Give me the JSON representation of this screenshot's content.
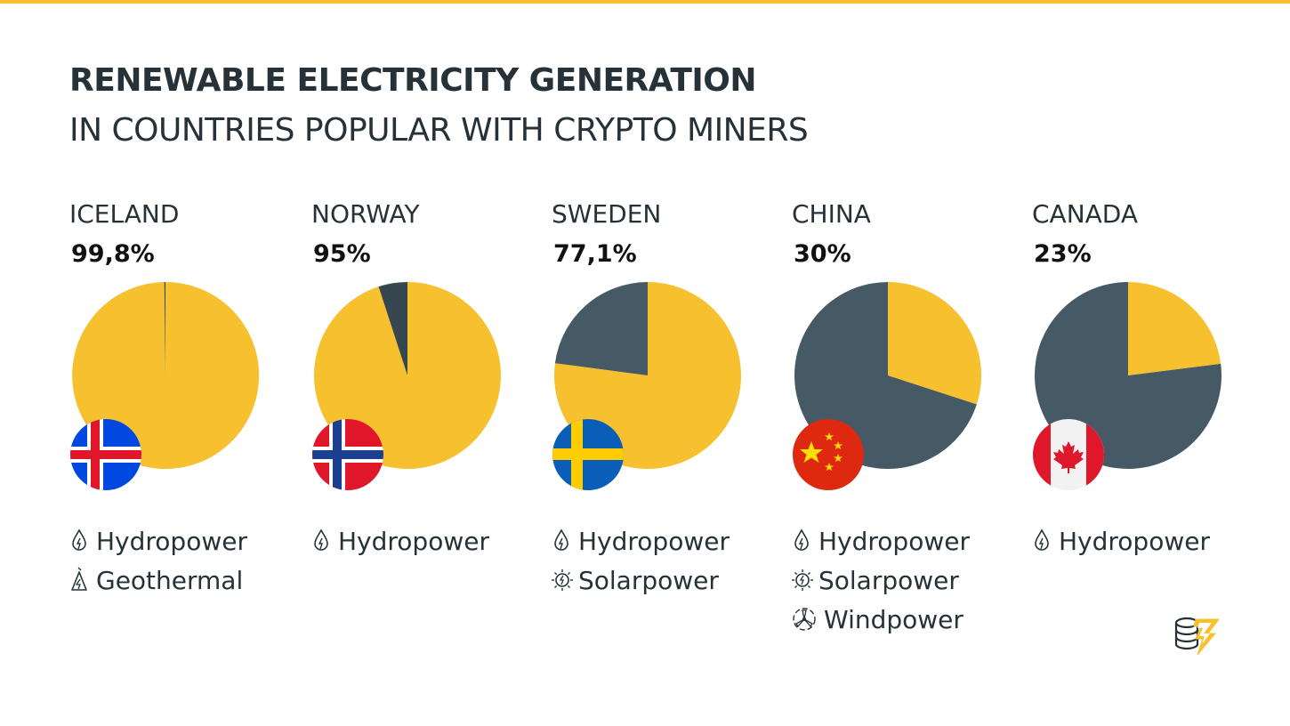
{
  "header": {
    "title": "RENEWABLE ELECTRICITY GENERATION",
    "subtitle": "IN COUNTRIES POPULAR WITH CRYPTO MINERS"
  },
  "colors": {
    "accent": "#f7c02e",
    "other_dark": "#455a64",
    "separator": "#37474f"
  },
  "chart_data": {
    "type": "pie",
    "title": "RENEWABLE ELECTRICITY GENERATION",
    "subtitle": "IN COUNTRIES POPULAR WITH CRYPTO MINERS",
    "categories": [
      "ICELAND",
      "NORWAY",
      "SWEDEN",
      "CHINA",
      "CANADA"
    ],
    "values": [
      99.8,
      95,
      77.1,
      30,
      23
    ],
    "unit": "%",
    "countries": [
      {
        "name": "ICELAND",
        "share_label": "99,8%",
        "renewable_share": 99.8,
        "flag_icon": "iceland-flag-icon",
        "sources": [
          {
            "label": "Hydropower",
            "icon": "hydropower-icon"
          },
          {
            "label": "Geothermal",
            "icon": "geothermal-icon"
          }
        ]
      },
      {
        "name": "NORWAY",
        "share_label": "95%",
        "renewable_share": 95,
        "flag_icon": "norway-flag-icon",
        "sources": [
          {
            "label": "Hydropower",
            "icon": "hydropower-icon"
          }
        ]
      },
      {
        "name": "SWEDEN",
        "share_label": "77,1%",
        "renewable_share": 77.1,
        "flag_icon": "sweden-flag-icon",
        "sources": [
          {
            "label": "Hydropower",
            "icon": "hydropower-icon"
          },
          {
            "label": "Solarpower",
            "icon": "solarpower-icon"
          }
        ]
      },
      {
        "name": "CHINA",
        "share_label": "30%",
        "renewable_share": 30,
        "flag_icon": "china-flag-icon",
        "sources": [
          {
            "label": "Hydropower",
            "icon": "hydropower-icon"
          },
          {
            "label": "Solarpower",
            "icon": "solarpower-icon"
          },
          {
            "label": "Windpower",
            "icon": "windpower-icon"
          }
        ]
      },
      {
        "name": "CANADA",
        "share_label": "23%",
        "renewable_share": 23,
        "flag_icon": "canada-flag-icon",
        "sources": [
          {
            "label": "Hydropower",
            "icon": "hydropower-icon"
          }
        ]
      }
    ]
  },
  "logo": {
    "icon": "coin-stack-lightning-logo-icon"
  }
}
